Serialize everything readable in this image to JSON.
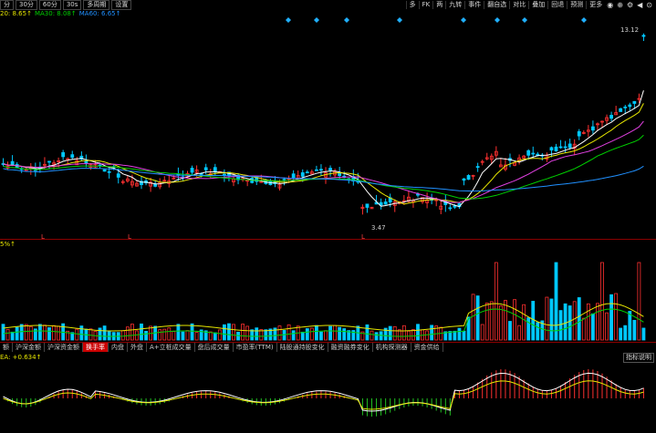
{
  "toolbar": {
    "left": [
      "分",
      "30分",
      "60分",
      "30s",
      "多周期",
      "设置"
    ],
    "right": [
      "多",
      "FK",
      "两",
      "九转",
      "事件",
      "翻自选",
      "对比",
      "叠加",
      "回退",
      "预测",
      "更多"
    ]
  },
  "ma_legend": [
    {
      "label": "20: 8.65↑",
      "color": "#e8e800"
    },
    {
      "label": "MA30: 8.08↑",
      "color": "#00d000"
    },
    {
      "label": "MA60: 6.65↑",
      "color": "#2090ff"
    }
  ],
  "price_annotations": {
    "high": "13.12",
    "low": "3.47"
  },
  "volume_label": "5%↑",
  "indicator_tabs": [
    "额",
    "沪深金额",
    "沪深资金额",
    "换手率",
    "内盘",
    "外盘",
    "A+立桩成交量",
    "盘后成交量",
    "市盈率(TTM)",
    "陆股通持股变化",
    "融资融券变化",
    "机构探测器",
    "资金供给"
  ],
  "active_tab": "换手率",
  "sub_indicator_label": "EA: +0.634↑",
  "indicator_button": "指标说明",
  "colors": {
    "up": "#ff3030",
    "down": "#00c8ff",
    "ma5": "#ffffff",
    "ma10": "#e8e800",
    "ma20": "#e040e0",
    "ma30": "#00d000",
    "ma60": "#2090ff"
  }
}
